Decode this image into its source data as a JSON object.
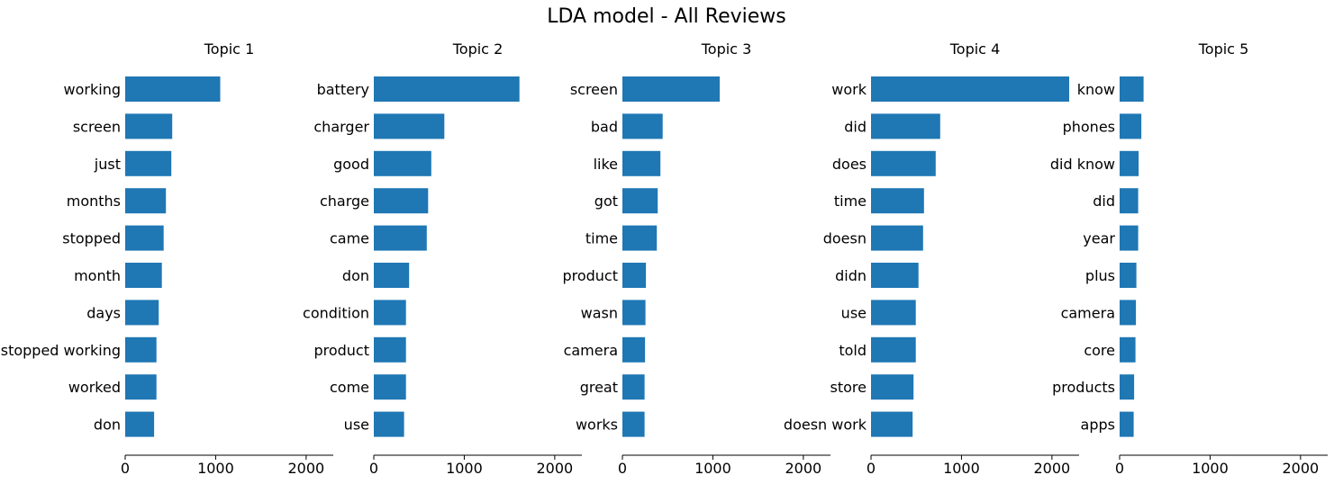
{
  "title": "LDA model - All Reviews",
  "colors": {
    "bar": "#1f77b4",
    "axis": "#000000"
  },
  "chart_data": [
    {
      "type": "bar",
      "orientation": "horizontal",
      "title": "Topic 1",
      "categories": [
        "working",
        "screen",
        "just",
        "months",
        "stopped",
        "month",
        "days",
        "stopped working",
        "worked",
        "don"
      ],
      "values": [
        1050,
        520,
        510,
        450,
        425,
        405,
        370,
        345,
        345,
        320
      ],
      "xlim": [
        0,
        2300
      ],
      "xticks": [
        0,
        1000,
        2000
      ]
    },
    {
      "type": "bar",
      "orientation": "horizontal",
      "title": "Topic 2",
      "categories": [
        "battery",
        "charger",
        "good",
        "charge",
        "came",
        "don",
        "condition",
        "product",
        "come",
        "use"
      ],
      "values": [
        1610,
        780,
        635,
        600,
        585,
        390,
        355,
        355,
        355,
        335
      ],
      "xlim": [
        0,
        2300
      ],
      "xticks": [
        0,
        1000,
        2000
      ]
    },
    {
      "type": "bar",
      "orientation": "horizontal",
      "title": "Topic 3",
      "categories": [
        "screen",
        "bad",
        "like",
        "got",
        "time",
        "product",
        "wasn",
        "camera",
        "great",
        "works"
      ],
      "values": [
        1075,
        445,
        420,
        390,
        380,
        260,
        255,
        250,
        245,
        245
      ],
      "xlim": [
        0,
        2300
      ],
      "xticks": [
        0,
        1000,
        2000
      ]
    },
    {
      "type": "bar",
      "orientation": "horizontal",
      "title": "Topic 4",
      "categories": [
        "work",
        "did",
        "does",
        "time",
        "doesn",
        "didn",
        "use",
        "told",
        "store",
        "doesn work"
      ],
      "values": [
        2190,
        765,
        715,
        585,
        575,
        525,
        495,
        495,
        470,
        460
      ],
      "xlim": [
        0,
        2300
      ],
      "xticks": [
        0,
        1000,
        2000
      ]
    },
    {
      "type": "bar",
      "orientation": "horizontal",
      "title": "Topic 5",
      "categories": [
        "know",
        "phones",
        "did know",
        "did",
        "year",
        "plus",
        "camera",
        "core",
        "products",
        "apps"
      ],
      "values": [
        265,
        240,
        210,
        205,
        205,
        185,
        180,
        175,
        160,
        155
      ],
      "xlim": [
        0,
        2300
      ],
      "xticks": [
        0,
        1000,
        2000
      ]
    }
  ]
}
